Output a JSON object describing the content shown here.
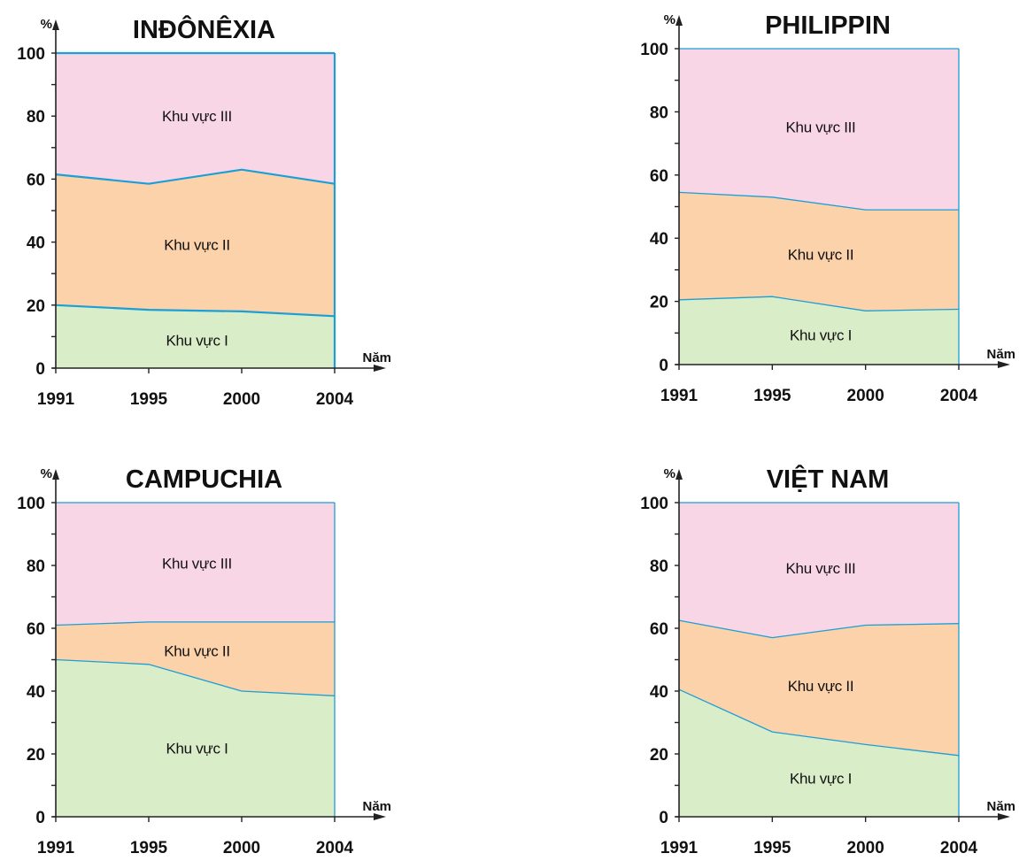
{
  "colors": {
    "sector_I": "#d9edc8",
    "sector_II": "#fbd2aa",
    "sector_III": "#f9d6e6",
    "boundary": "#1a9fd6",
    "axis": "#222222"
  },
  "chart_data": [
    {
      "type": "area",
      "stacked": true,
      "title": "INĐÔNÊXIA",
      "ylabel": "%",
      "xlabel": "Năm",
      "ylim": [
        0,
        100
      ],
      "y_ticks": [
        0,
        20,
        40,
        60,
        80,
        100
      ],
      "categories": [
        "1991",
        "1995",
        "2000",
        "2004"
      ],
      "series": [
        {
          "name": "Khu vực I",
          "values": [
            20,
            18.5,
            18,
            16.5
          ]
        },
        {
          "name": "Khu vực II",
          "values": [
            41.5,
            40,
            45,
            42
          ]
        },
        {
          "name": "Khu vực III",
          "values": [
            38.5,
            41.5,
            37,
            41.5
          ]
        }
      ]
    },
    {
      "type": "area",
      "stacked": true,
      "title": "PHILIPPIN",
      "ylabel": "%",
      "xlabel": "Năm",
      "ylim": [
        0,
        100
      ],
      "y_ticks": [
        0,
        20,
        40,
        60,
        80,
        100
      ],
      "categories": [
        "1991",
        "1995",
        "2000",
        "2004"
      ],
      "series": [
        {
          "name": "Khu vực I",
          "values": [
            20.5,
            21.5,
            17,
            17.5
          ]
        },
        {
          "name": "Khu vực II",
          "values": [
            34,
            31.5,
            32,
            31.5
          ]
        },
        {
          "name": "Khu vực III",
          "values": [
            45.5,
            47,
            51,
            51
          ]
        }
      ]
    },
    {
      "type": "area",
      "stacked": true,
      "title": "CAMPUCHIA",
      "ylabel": "%",
      "xlabel": "Năm",
      "ylim": [
        0,
        100
      ],
      "y_ticks": [
        0,
        20,
        40,
        60,
        80,
        100
      ],
      "categories": [
        "1991",
        "1995",
        "2000",
        "2004"
      ],
      "series": [
        {
          "name": "Khu vực I",
          "values": [
            50,
            48.5,
            40,
            38.5
          ]
        },
        {
          "name": "Khu vực II",
          "values": [
            11,
            13.5,
            22,
            23.5
          ]
        },
        {
          "name": "Khu vực III",
          "values": [
            39,
            38,
            38,
            38
          ]
        }
      ]
    },
    {
      "type": "area",
      "stacked": true,
      "title": "VIỆT NAM",
      "ylabel": "%",
      "xlabel": "Năm",
      "ylim": [
        0,
        100
      ],
      "y_ticks": [
        0,
        20,
        40,
        60,
        80,
        100
      ],
      "categories": [
        "1991",
        "1995",
        "2000",
        "2004"
      ],
      "series": [
        {
          "name": "Khu vực I",
          "values": [
            40.5,
            27,
            23,
            19.5
          ]
        },
        {
          "name": "Khu vực II",
          "values": [
            22,
            30,
            38,
            42
          ]
        },
        {
          "name": "Khu vực III",
          "values": [
            37.5,
            43,
            39,
            38.5
          ]
        }
      ]
    }
  ]
}
